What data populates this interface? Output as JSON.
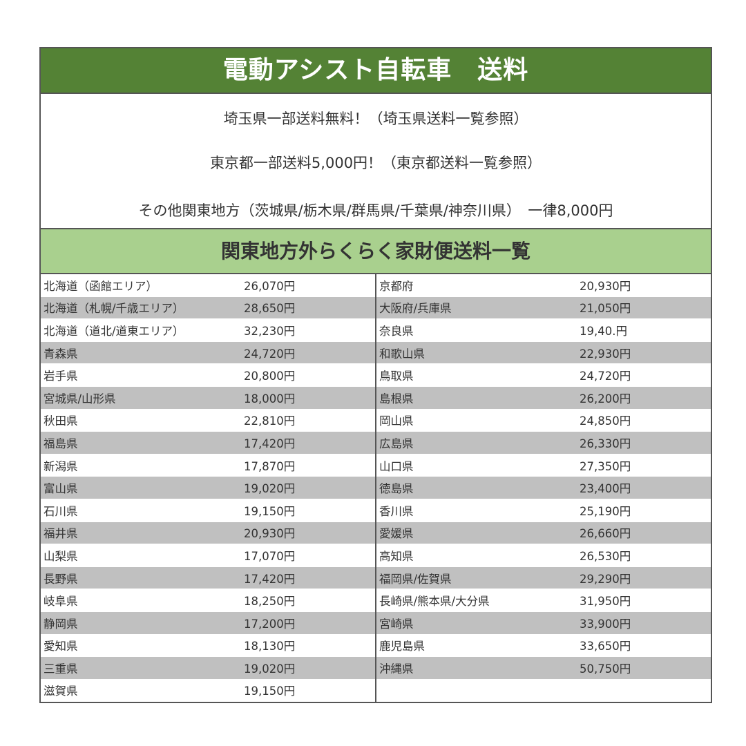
{
  "title": "電動アシスト自転車　送料",
  "notes": [
    "埼玉県一部送料無料！（埼玉県送料一覧参照）",
    "東京都一部送料5,000円！（東京都送料一覧参照）",
    "その他関東地方（茨城県/栃木県/群馬県/千葉県/神奈川県）　一律8,000円"
  ],
  "subtitle": "関東地方外らくらく家財便送料一覧",
  "colors": {
    "title_bg": "#548235",
    "subtitle_bg": "#a9d08e",
    "stripe": "#c0c0c0"
  },
  "left": [
    {
      "name": "北海道（函館エリア）",
      "price": "26,070円"
    },
    {
      "name": "北海道（札幌/千歳エリア）",
      "price": "28,650円"
    },
    {
      "name": "北海道（道北/道東エリア）",
      "price": "32,230円"
    },
    {
      "name": "青森県",
      "price": "24,720円"
    },
    {
      "name": "岩手県",
      "price": "20,800円"
    },
    {
      "name": "宮城県/山形県",
      "price": "18,000円"
    },
    {
      "name": "秋田県",
      "price": "22,810円"
    },
    {
      "name": "福島県",
      "price": "17,420円"
    },
    {
      "name": "新潟県",
      "price": "17,870円"
    },
    {
      "name": "富山県",
      "price": "19,020円"
    },
    {
      "name": "石川県",
      "price": "19,150円"
    },
    {
      "name": "福井県",
      "price": "20,930円"
    },
    {
      "name": "山梨県",
      "price": "17,070円"
    },
    {
      "name": "長野県",
      "price": "17,420円"
    },
    {
      "name": "岐阜県",
      "price": "18,250円"
    },
    {
      "name": "静岡県",
      "price": "17,200円"
    },
    {
      "name": "愛知県",
      "price": "18,130円"
    },
    {
      "name": "三重県",
      "price": "19,020円"
    },
    {
      "name": "滋賀県",
      "price": "19,150円"
    }
  ],
  "right": [
    {
      "name": "京都府",
      "price": "20,930円"
    },
    {
      "name": "大阪府/兵庫県",
      "price": "21,050円"
    },
    {
      "name": "奈良県",
      "price": "19,40.円"
    },
    {
      "name": "和歌山県",
      "price": "22,930円"
    },
    {
      "name": "鳥取県",
      "price": "24,720円"
    },
    {
      "name": "島根県",
      "price": "26,200円"
    },
    {
      "name": "岡山県",
      "price": "24,850円"
    },
    {
      "name": "広島県",
      "price": "26,330円"
    },
    {
      "name": "山口県",
      "price": "27,350円"
    },
    {
      "name": "徳島県",
      "price": "23,400円"
    },
    {
      "name": "香川県",
      "price": "25,190円"
    },
    {
      "name": "愛媛県",
      "price": "26,660円"
    },
    {
      "name": "高知県",
      "price": "26,530円"
    },
    {
      "name": "福岡県/佐賀県",
      "price": "29,290円"
    },
    {
      "name": "長崎県/熊本県/大分県",
      "price": "31,950円"
    },
    {
      "name": "宮崎県",
      "price": "33,900円"
    },
    {
      "name": "鹿児島県",
      "price": "33,650円"
    },
    {
      "name": "沖縄県",
      "price": "50,750円"
    },
    {
      "name": "",
      "price": ""
    }
  ]
}
